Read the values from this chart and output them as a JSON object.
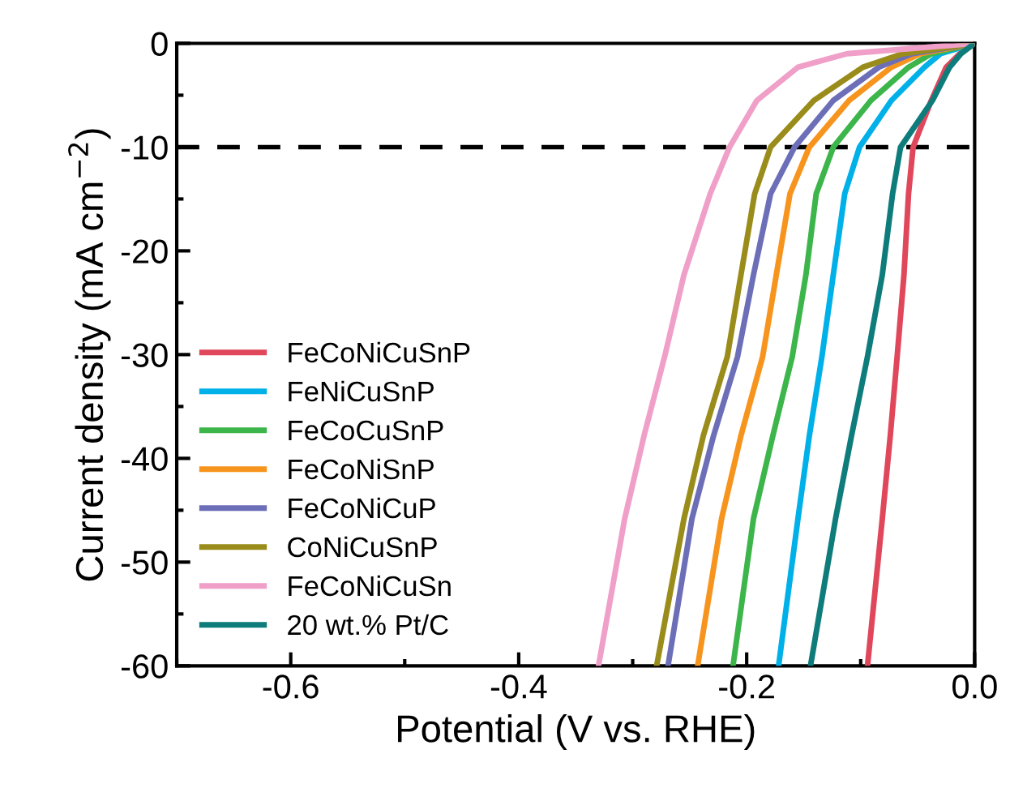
{
  "chart_data": {
    "type": "line",
    "xlabel": "Potential (V vs. RHE)",
    "ylabel": "Current density (mA cm$^{−2}$)",
    "xlim": [
      -0.7,
      0.0
    ],
    "xticks": [
      {
        "value": -0.6,
        "label": "-0.6"
      },
      {
        "value": -0.4,
        "label": "-0.4"
      },
      {
        "value": -0.2,
        "label": "-0.2"
      },
      {
        "value": 0.0,
        "label": "0.0"
      }
    ],
    "ylim": [
      -60,
      0
    ],
    "yticks": [
      {
        "value": -60,
        "label": "-60"
      },
      {
        "value": -50,
        "label": "-50"
      },
      {
        "value": -40,
        "label": "-40"
      },
      {
        "value": -30,
        "label": "-30"
      },
      {
        "value": -20,
        "label": "-20"
      },
      {
        "value": -10,
        "label": "-10"
      },
      0
    ],
    "grid": false,
    "legend": "bottom left",
    "line_style": "solid",
    "marker": "none",
    "ref_lines": [
      {
        "axis": "y",
        "value": -10,
        "color": "#000000",
        "line_style": "dashed"
      }
    ],
    "series": [
      {
        "name": "FeCoNiCuSnP",
        "color": "#e0475b",
        "x": [
          0.0,
          -0.013,
          -0.025,
          -0.038,
          -0.054,
          -0.058,
          -0.062,
          -0.068,
          -0.074,
          -0.081,
          -0.094
        ],
        "values": [
          0,
          -1,
          -2.3,
          -5.5,
          -10,
          -14.5,
          -22.3,
          -30.2,
          -37.8,
          -45.8,
          -60
        ]
      },
      {
        "name": "FeNiCuSnP",
        "color": "#00b0e8",
        "x": [
          0.0,
          -0.03,
          -0.044,
          -0.073,
          -0.101,
          -0.114,
          -0.124,
          -0.134,
          -0.145,
          -0.155,
          -0.172
        ],
        "values": [
          0,
          -1,
          -2.3,
          -5.5,
          -10,
          -14.5,
          -22.3,
          -30.2,
          -37.8,
          -45.8,
          -60
        ]
      },
      {
        "name": "FeCoCuSnP",
        "color": "#3cb54a",
        "x": [
          0.0,
          -0.038,
          -0.058,
          -0.091,
          -0.124,
          -0.139,
          -0.148,
          -0.16,
          -0.177,
          -0.194,
          -0.212
        ],
        "values": [
          0,
          -1,
          -2.3,
          -5.5,
          -10,
          -14.5,
          -22.3,
          -30.2,
          -37.8,
          -45.8,
          -60
        ]
      },
      {
        "name": "FeCoNiSnP",
        "color": "#f7941d",
        "x": [
          0.0,
          -0.048,
          -0.073,
          -0.11,
          -0.145,
          -0.162,
          -0.174,
          -0.186,
          -0.205,
          -0.222,
          -0.243
        ],
        "values": [
          0,
          -1,
          -2.3,
          -5.5,
          -10,
          -14.5,
          -22.3,
          -30.2,
          -37.8,
          -45.8,
          -60
        ]
      },
      {
        "name": "FeCoNiCuP",
        "color": "#6c6fb8",
        "x": [
          0.0,
          -0.055,
          -0.084,
          -0.124,
          -0.158,
          -0.179,
          -0.194,
          -0.208,
          -0.229,
          -0.248,
          -0.269
        ],
        "values": [
          0,
          -1,
          -2.3,
          -5.5,
          -10,
          -14.5,
          -22.3,
          -30.2,
          -37.8,
          -45.8,
          -60
        ]
      },
      {
        "name": "CoNiCuSnP",
        "color": "#9a8c1a",
        "x": [
          0.0,
          -0.063,
          -0.098,
          -0.141,
          -0.179,
          -0.193,
          -0.205,
          -0.217,
          -0.238,
          -0.255,
          -0.279
        ],
        "values": [
          0,
          -1,
          -2.3,
          -5.5,
          -10,
          -14.5,
          -22.3,
          -30.2,
          -37.8,
          -45.8,
          -60
        ]
      },
      {
        "name": "FeCoNiCuSn",
        "color": "#f0a0c8",
        "x": [
          0.0,
          -0.112,
          -0.155,
          -0.191,
          -0.215,
          -0.232,
          -0.255,
          -0.272,
          -0.29,
          -0.307,
          -0.33
        ],
        "values": [
          0,
          -1,
          -2.3,
          -5.5,
          -10,
          -14.5,
          -22.3,
          -30.2,
          -37.8,
          -45.8,
          -60
        ]
      },
      {
        "name": "20 wt.% Pt/C",
        "color": "#0e7c7b",
        "x": [
          0.0,
          -0.012,
          -0.022,
          -0.037,
          -0.065,
          -0.072,
          -0.081,
          -0.094,
          -0.108,
          -0.122,
          -0.144
        ],
        "values": [
          0,
          -1,
          -2.3,
          -5.5,
          -10,
          -14.5,
          -22.3,
          -30.2,
          -37.8,
          -45.8,
          -60
        ]
      }
    ]
  }
}
